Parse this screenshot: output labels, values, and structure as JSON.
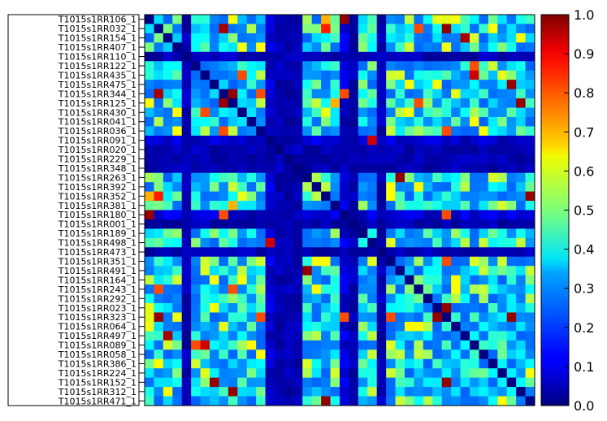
{
  "chart_data": {
    "type": "heatmap",
    "title": "",
    "row_labels": [
      "T1015s1RR106_1",
      "T1015s1RR032_1",
      "T1015s1RR154_1",
      "T1015s1RR407_1",
      "T1015s1RR110_1",
      "T1015s1RR122_1",
      "T1015s1RR435_1",
      "T1015s1RR475_1",
      "T1015s1RR344_1",
      "T1015s1RR125_1",
      "T1015s1RR430_1",
      "T1015s1RR041_1",
      "T1015s1RR036_1",
      "T1015s1RR091_1",
      "T1015s1RR020_1",
      "T1015s1RR229_1",
      "T1015s1RR348_1",
      "T1015s1RR263_1",
      "T1015s1RR392_1",
      "T1015s1RR352_1",
      "T1015s1RR381_1",
      "T1015s1RR180_1",
      "T1015s1RR001_1",
      "T1015s1RR189_1",
      "T1015s1RR498_1",
      "T1015s1RR473_1",
      "T1015s1RR351_1",
      "T1015s1RR491_1",
      "T1015s1RR164_1",
      "T1015s1RR243_1",
      "T1015s1RR292_1",
      "T1015s1RR023_1",
      "T1015s1RR323_1",
      "T1015s1RR064_1",
      "T1015s1RR497_1",
      "T1015s1RR089_1",
      "T1015s1RR058_1",
      "T1015s1RR386_1",
      "T1015s1RR224_1",
      "T1015s1RR152_1",
      "T1015s1RR312_1",
      "T1015s1RR471_1"
    ],
    "matrix_size": 42,
    "dark_indices": [
      4,
      14,
      15,
      16,
      22,
      25
    ],
    "low_columns": [
      13,
      21,
      22
    ],
    "values_note_cells": [
      {
        "row": 0,
        "col": 9,
        "value": 0.62
      },
      {
        "row": 0,
        "col": 19,
        "value": 0.7
      },
      {
        "row": 0,
        "col": 21,
        "value": 0.98
      },
      {
        "row": 0,
        "col": 32,
        "value": 0.6
      },
      {
        "row": 1,
        "col": 8,
        "value": 0.96
      },
      {
        "row": 1,
        "col": 19,
        "value": 0.85
      },
      {
        "row": 1,
        "col": 29,
        "value": 0.8
      },
      {
        "row": 1,
        "col": 32,
        "value": 0.98
      },
      {
        "row": 2,
        "col": 34,
        "value": 0.96
      },
      {
        "row": 6,
        "col": 10,
        "value": 0.8
      },
      {
        "row": 7,
        "col": 39,
        "value": 0.98
      },
      {
        "row": 9,
        "col": 8,
        "value": 0.98
      },
      {
        "row": 9,
        "col": 20,
        "value": 0.7
      },
      {
        "row": 9,
        "col": 29,
        "value": 0.8
      },
      {
        "row": 9,
        "col": 40,
        "value": 0.98
      },
      {
        "row": 12,
        "col": 8,
        "value": 0.8
      },
      {
        "row": 12,
        "col": 32,
        "value": 0.8
      },
      {
        "row": 13,
        "col": 24,
        "value": 0.92
      },
      {
        "row": 17,
        "col": 27,
        "value": 0.98
      },
      {
        "row": 19,
        "col": 41,
        "value": 0.98
      },
      {
        "row": 21,
        "col": 8,
        "value": 0.8
      },
      {
        "row": 21,
        "col": 32,
        "value": 0.8
      },
      {
        "row": 32,
        "col": 26,
        "value": 0.8
      },
      {
        "row": 32,
        "col": 31,
        "value": 0.98
      },
      {
        "row": 32,
        "col": 39,
        "value": 0.98
      },
      {
        "row": 35,
        "col": 5,
        "value": 0.8
      },
      {
        "row": 35,
        "col": 6,
        "value": 0.92
      }
    ],
    "colormap": "jet",
    "colorbar": {
      "min": 0.0,
      "max": 1.0,
      "ticks": [
        "0.0",
        "0.1",
        "0.2",
        "0.3",
        "0.4",
        "0.5",
        "0.6",
        "0.7",
        "0.8",
        "0.9",
        "1.0"
      ]
    },
    "xlabel": "",
    "ylabel": ""
  }
}
